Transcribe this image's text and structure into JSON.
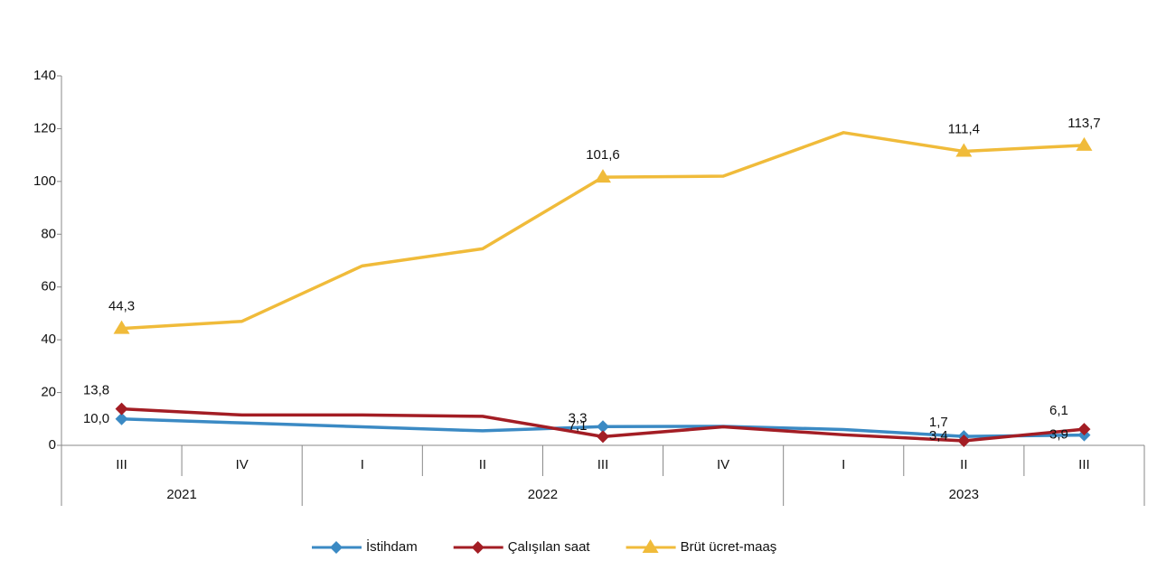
{
  "chart_data": {
    "type": "line",
    "categories": [
      "III",
      "IV",
      "I",
      "II",
      "III",
      "IV",
      "I",
      "II",
      "III"
    ],
    "x_groups": [
      {
        "label": "2021",
        "count": 2
      },
      {
        "label": "2022",
        "count": 4
      },
      {
        "label": "2023",
        "count": 3
      }
    ],
    "series": [
      {
        "name": "İstihdam",
        "color": "#3b8ac4",
        "marker": "diamond",
        "values": [
          10.0,
          8.5,
          7.0,
          5.5,
          7.1,
          7.2,
          6.0,
          3.4,
          3.9
        ],
        "value_labels": [
          "10,0",
          null,
          null,
          null,
          "7,1",
          null,
          null,
          "3,4",
          "3,9"
        ]
      },
      {
        "name": "Çalışılan saat",
        "color": "#a31d24",
        "marker": "diamond",
        "values": [
          13.8,
          11.5,
          11.5,
          11.0,
          3.3,
          7.0,
          4.0,
          1.7,
          6.1
        ],
        "value_labels": [
          "13,8",
          null,
          null,
          null,
          "3,3",
          null,
          null,
          "1,7",
          "6,1"
        ]
      },
      {
        "name": "Brüt ücret-maaş",
        "color": "#f0bb3a",
        "marker": "triangle",
        "values": [
          44.3,
          47.0,
          68.0,
          74.5,
          101.6,
          102.0,
          118.5,
          111.4,
          113.7
        ],
        "value_labels": [
          "44,3",
          null,
          null,
          null,
          "101,6",
          null,
          null,
          "111,4",
          "113,7"
        ]
      }
    ],
    "ylim": [
      0,
      140
    ],
    "yticks": [
      0,
      20,
      40,
      60,
      80,
      100,
      120,
      140
    ],
    "grid": false,
    "legend": "bottom"
  }
}
